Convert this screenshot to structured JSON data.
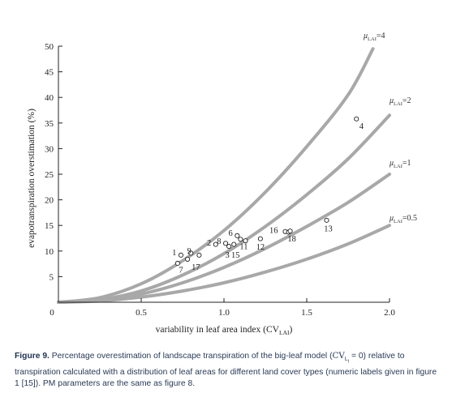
{
  "chart_data": {
    "type": "line",
    "xlabel": "variability in leaf area index (CV",
    "xlabel_sub": "LAI",
    "xlabel_end": ")",
    "ylabel": "evapotranspiration overstimation (%)",
    "xlim": [
      0,
      2.0
    ],
    "ylim": [
      0,
      50
    ],
    "x_ticks": [
      0.5,
      1.0,
      1.5,
      2.0
    ],
    "x_tick_labels": [
      "0.5",
      "1.0",
      "1.5",
      "2.0"
    ],
    "x_origin_label": "0",
    "y_ticks": [
      5,
      10,
      15,
      20,
      25,
      30,
      35,
      40,
      45,
      50
    ],
    "y_tick_labels": [
      "5",
      "10",
      "15",
      "20",
      "25",
      "30",
      "35",
      "40",
      "45",
      "50"
    ],
    "series": [
      {
        "mu": "=4",
        "color": "#a8a8a8",
        "x": [
          0,
          0.25,
          0.5,
          0.75,
          1.0,
          1.25,
          1.5,
          1.75,
          1.9
        ],
        "y": [
          0,
          0.9,
          3.6,
          8.1,
          14.0,
          21.5,
          30.4,
          40.5,
          49.5
        ]
      },
      {
        "mu": "=2",
        "color": "#a8a8a8",
        "x": [
          0,
          0.25,
          0.5,
          0.75,
          1.0,
          1.25,
          1.5,
          1.75,
          2.0
        ],
        "y": [
          0,
          0.5,
          2.2,
          5.3,
          9.5,
          14.8,
          21.0,
          28.0,
          36.5
        ]
      },
      {
        "mu": "=1",
        "color": "#a8a8a8",
        "x": [
          0,
          0.25,
          0.5,
          0.75,
          1.0,
          1.25,
          1.5,
          1.75,
          2.0
        ],
        "y": [
          0,
          0.4,
          1.6,
          3.8,
          6.8,
          10.5,
          14.8,
          19.5,
          25.0
        ]
      },
      {
        "mu": "=0.5",
        "color": "#a8a8a8",
        "x": [
          0,
          0.25,
          0.5,
          0.75,
          1.0,
          1.25,
          1.5,
          1.75,
          2.0
        ],
        "y": [
          0,
          0.25,
          1.0,
          2.2,
          3.8,
          5.9,
          8.4,
          11.4,
          15.0
        ]
      }
    ],
    "curve_label_symbol": "μ",
    "curve_label_sub": "LAI",
    "points": [
      {
        "label": "1",
        "x": 0.74,
        "y": 9.2,
        "lx": 0.7,
        "ly": 9.8
      },
      {
        "label": "2",
        "x": 0.95,
        "y": 11.3,
        "lx": 0.91,
        "ly": 11.7
      },
      {
        "label": "3",
        "x": 1.03,
        "y": 10.9,
        "lx": 1.02,
        "ly": 9.3
      },
      {
        "label": "4",
        "x": 1.8,
        "y": 35.8,
        "lx": 1.83,
        "ly": 34.5
      },
      {
        "label": "6",
        "x": 1.08,
        "y": 13.0,
        "lx": 1.04,
        "ly": 13.6
      },
      {
        "label": "7",
        "x": 0.72,
        "y": 7.6,
        "lx": 0.74,
        "ly": 6.4
      },
      {
        "label": "8",
        "x": 1.01,
        "y": 11.5,
        "lx": 0.97,
        "ly": 12.0
      },
      {
        "label": "9",
        "x": 0.8,
        "y": 9.6,
        "lx": 0.79,
        "ly": 10.1
      },
      {
        "label": "11",
        "x": 1.1,
        "y": 12.3,
        "lx": 1.12,
        "ly": 11.0
      },
      {
        "label": "12",
        "x": 1.22,
        "y": 12.4,
        "lx": 1.22,
        "ly": 10.9
      },
      {
        "label": "13",
        "x": 1.62,
        "y": 16.0,
        "lx": 1.63,
        "ly": 14.5
      },
      {
        "label": "15",
        "x": 1.06,
        "y": 11.3,
        "lx": 1.07,
        "ly": 9.3
      },
      {
        "label": "16",
        "x": 1.37,
        "y": 13.8,
        "lx": 1.3,
        "ly": 14.2
      },
      {
        "label": "17",
        "x": 0.78,
        "y": 8.4,
        "lx": 0.83,
        "ly": 7.0
      },
      {
        "label": "18",
        "x": 1.39,
        "y": 13.7,
        "lx": 1.41,
        "ly": 12.5
      },
      {
        "label": "",
        "x": 0.85,
        "y": 9.2
      },
      {
        "label": "",
        "x": 1.13,
        "y": 12.0
      },
      {
        "label": "",
        "x": 1.4,
        "y": 13.9
      }
    ]
  },
  "caption": {
    "figure_label": "Figure 9.",
    "text_a": " Percentage overestimation of landscape transpiration of the big-leaf model (",
    "cv_symbol": "CV",
    "cv_sub": "L",
    "cv_subsub": "i",
    "text_b": " = 0) relative to transpiration calculated with a distribution of leaf areas for different land cover types (numeric labels given in figure 1 [15]). PM parameters are the same as figure 8."
  }
}
